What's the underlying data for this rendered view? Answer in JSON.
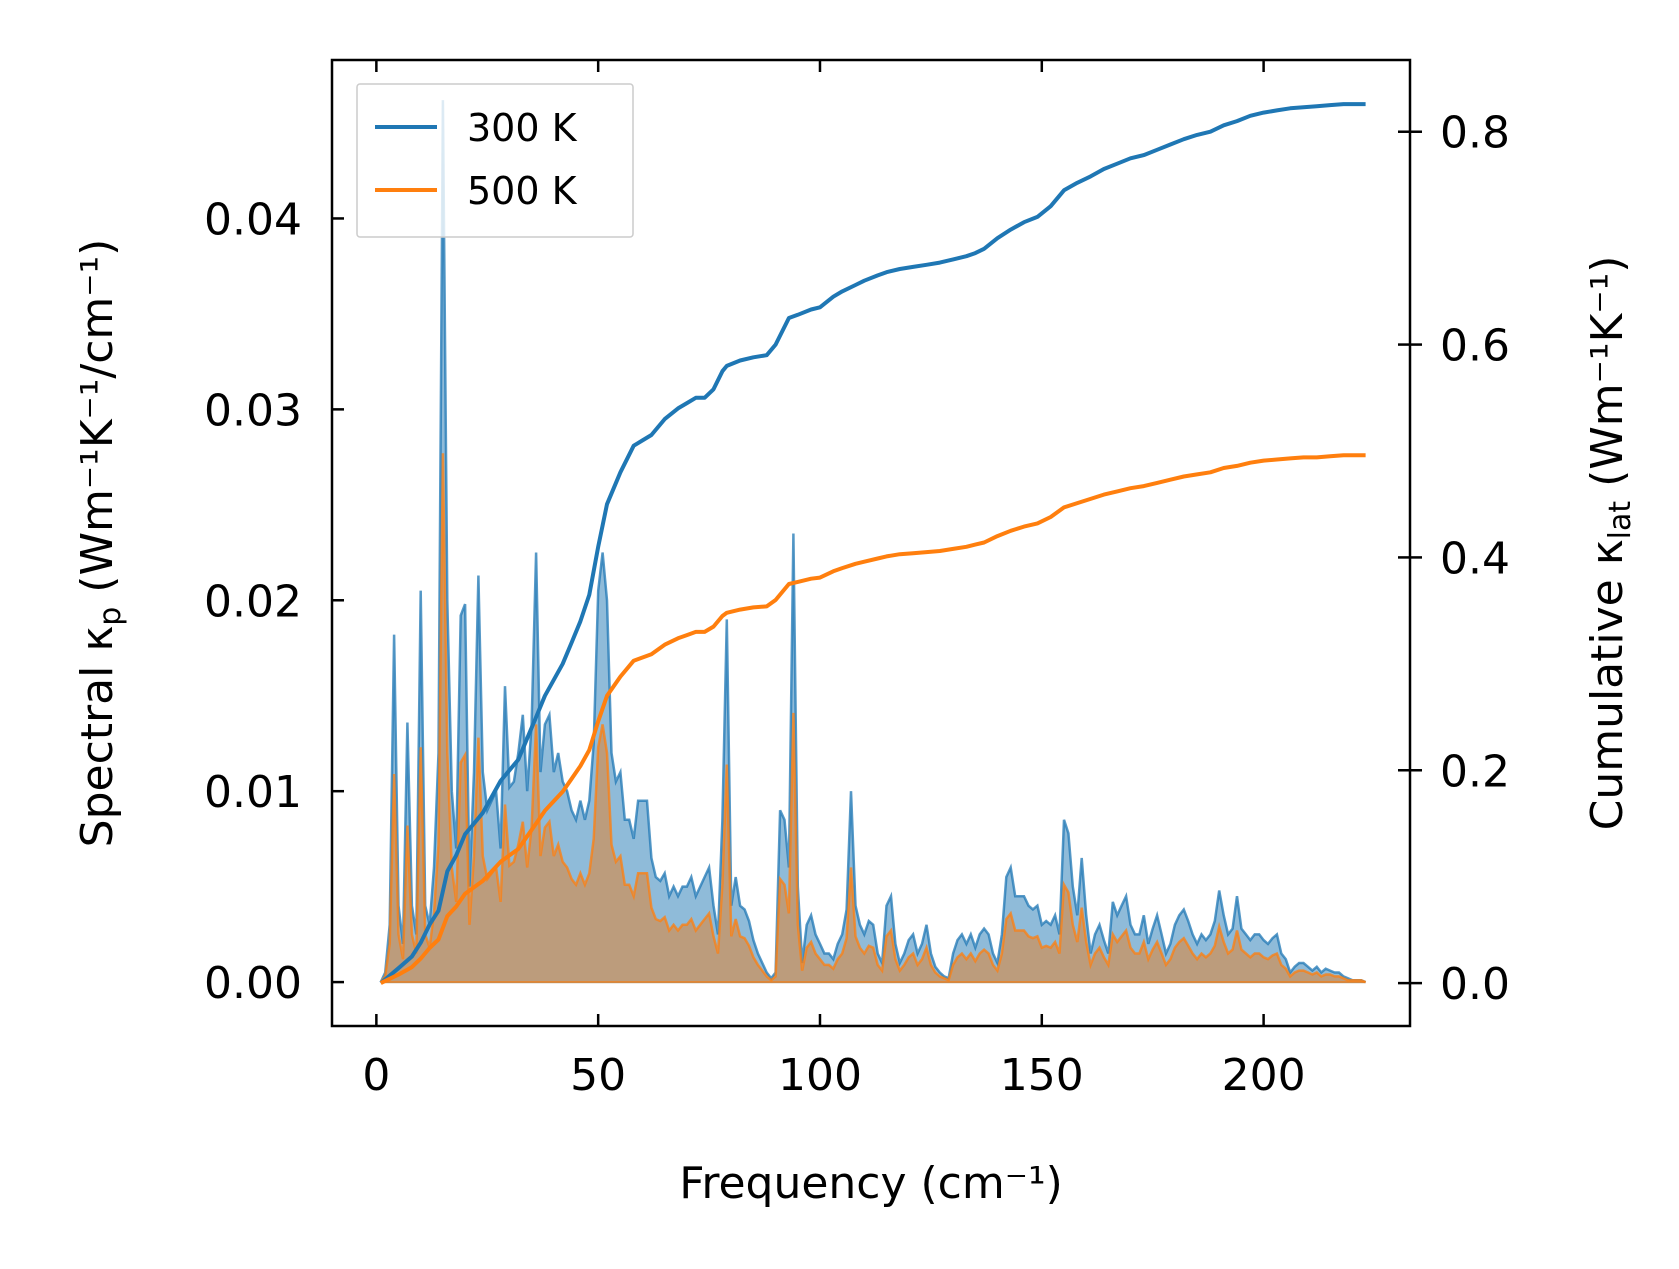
{
  "chart_data": {
    "type": "line",
    "title": "",
    "xlabel": "Frequency (cm⁻¹)",
    "ylabel_left": {
      "prefix": "Spectral κ",
      "sub": "p",
      "unit": " (Wm⁻¹K⁻¹/cm⁻¹)"
    },
    "ylabel_right": {
      "prefix": "Cumulative κ",
      "sub": "lat",
      "unit": " (Wm⁻¹K⁻¹)"
    },
    "xlim": [
      -10,
      233
    ],
    "ylim_left": [
      -0.0023,
      0.0483
    ],
    "ylim_right": [
      -0.0403,
      0.8674
    ],
    "xticks": [
      0,
      50,
      100,
      150,
      200
    ],
    "xtick_labels": [
      "0",
      "50",
      "100",
      "150",
      "200"
    ],
    "yticks_left": [
      0.0,
      0.01,
      0.02,
      0.03,
      0.04
    ],
    "ytick_labels_left": [
      "0.00",
      "0.01",
      "0.02",
      "0.03",
      "0.04"
    ],
    "yticks_right": [
      0.0,
      0.2,
      0.4,
      0.6,
      0.8
    ],
    "ytick_labels_right": [
      "0.0",
      "0.2",
      "0.4",
      "0.6",
      "0.8"
    ],
    "legend": {
      "placement": "top-left",
      "entries": [
        "300 K",
        "500 K"
      ]
    },
    "colors": {
      "s300": "#1f77b4",
      "s500": "#ff7f0e",
      "fill_overlap": "#c4966b"
    },
    "spectral_x": [
      1,
      2,
      3,
      4,
      5,
      6,
      7,
      8,
      9,
      10,
      11,
      12,
      13,
      14,
      15,
      16,
      17,
      18,
      19,
      20,
      21,
      22,
      23,
      24,
      25,
      26,
      27,
      28,
      29,
      30,
      31,
      32,
      33,
      34,
      35,
      36,
      37,
      38,
      39,
      40,
      41,
      42,
      43,
      44,
      45,
      46,
      47,
      48,
      49,
      50,
      51,
      52,
      53,
      54,
      55,
      56,
      57,
      58,
      59,
      60,
      61,
      62,
      63,
      64,
      65,
      66,
      67,
      68,
      69,
      70,
      71,
      72,
      73,
      74,
      75,
      76,
      77,
      78,
      79,
      80,
      81,
      82,
      83,
      84,
      85,
      86,
      87,
      88,
      89,
      90,
      91,
      92,
      93,
      94,
      95,
      96,
      97,
      98,
      99,
      100,
      101,
      102,
      103,
      104,
      105,
      106,
      107,
      108,
      109,
      110,
      111,
      112,
      113,
      114,
      115,
      116,
      117,
      118,
      119,
      120,
      121,
      122,
      123,
      124,
      125,
      126,
      127,
      128,
      129,
      130,
      131,
      132,
      133,
      134,
      135,
      136,
      137,
      138,
      139,
      140,
      141,
      142,
      143,
      144,
      145,
      146,
      147,
      148,
      149,
      150,
      151,
      152,
      153,
      154,
      155,
      156,
      157,
      158,
      159,
      160,
      161,
      162,
      163,
      164,
      165,
      166,
      167,
      168,
      169,
      170,
      171,
      172,
      173,
      174,
      175,
      176,
      177,
      178,
      179,
      180,
      181,
      182,
      183,
      184,
      185,
      186,
      187,
      188,
      189,
      190,
      191,
      192,
      193,
      194,
      195,
      196,
      197,
      198,
      199,
      200,
      201,
      202,
      203,
      204,
      205,
      206,
      207,
      208,
      209,
      210,
      211,
      212,
      213,
      214,
      215,
      216,
      217,
      218,
      219,
      220,
      221,
      222,
      223
    ],
    "series": [
      {
        "name": "300 K",
        "spectral": [
          0,
          0.0005,
          0.003,
          0.0182,
          0.004,
          0.002,
          0.0136,
          0.004,
          0.0025,
          0.0205,
          0.004,
          0.003,
          0.006,
          0.012,
          0.0462,
          0.02,
          0.01,
          0.007,
          0.0192,
          0.0198,
          0.005,
          0.011,
          0.0213,
          0.011,
          0.009,
          0.0095,
          0.01,
          0.007,
          0.0155,
          0.0102,
          0.0105,
          0.012,
          0.014,
          0.01,
          0.0135,
          0.0225,
          0.011,
          0.0135,
          0.014,
          0.011,
          0.012,
          0.0105,
          0.01,
          0.009,
          0.0085,
          0.0095,
          0.0085,
          0.0095,
          0.0125,
          0.0205,
          0.0225,
          0.02,
          0.012,
          0.0105,
          0.011,
          0.0085,
          0.0085,
          0.0075,
          0.0095,
          0.0095,
          0.0095,
          0.0065,
          0.0055,
          0.0053,
          0.0057,
          0.0045,
          0.005,
          0.0045,
          0.005,
          0.005,
          0.0055,
          0.0045,
          0.005,
          0.0055,
          0.006,
          0.004,
          0.0025,
          0.0085,
          0.019,
          0.004,
          0.0055,
          0.004,
          0.0038,
          0.0032,
          0.0022,
          0.0015,
          0.001,
          0.0005,
          0.0002,
          0.0005,
          0.009,
          0.0085,
          0.006,
          0.0235,
          0.005,
          0.001,
          0.003,
          0.0035,
          0.0025,
          0.002,
          0.0015,
          0.0015,
          0.0012,
          0.002,
          0.0025,
          0.0038,
          0.01,
          0.004,
          0.003,
          0.0025,
          0.0032,
          0.003,
          0.0015,
          0.001,
          0.004,
          0.0045,
          0.002,
          0.001,
          0.0015,
          0.0022,
          0.0025,
          0.0015,
          0.002,
          0.003,
          0.0015,
          0.0008,
          0.0005,
          0.0003,
          0.0002,
          0.0015,
          0.0022,
          0.0025,
          0.002,
          0.0025,
          0.0018,
          0.0025,
          0.0028,
          0.0025,
          0.0015,
          0.001,
          0.0025,
          0.0055,
          0.006,
          0.0045,
          0.0045,
          0.0045,
          0.004,
          0.0038,
          0.004,
          0.003,
          0.0032,
          0.003,
          0.0035,
          0.0025,
          0.0085,
          0.0078,
          0.005,
          0.0035,
          0.0065,
          0.0035,
          0.0015,
          0.0025,
          0.003,
          0.0022,
          0.0015,
          0.0042,
          0.0035,
          0.004,
          0.0045,
          0.003,
          0.0025,
          0.0025,
          0.0035,
          0.002,
          0.0028,
          0.0035,
          0.0025,
          0.0015,
          0.002,
          0.003,
          0.0035,
          0.0038,
          0.0032,
          0.0025,
          0.002,
          0.0025,
          0.0022,
          0.0025,
          0.0032,
          0.0048,
          0.0035,
          0.0025,
          0.0028,
          0.0045,
          0.0028,
          0.0025,
          0.0022,
          0.0025,
          0.0025,
          0.0022,
          0.002,
          0.0023,
          0.0025,
          0.0015,
          0.0012,
          0.0005,
          0.0008,
          0.001,
          0.001,
          0.0008,
          0.0006,
          0.0008,
          0.0005,
          0.0007,
          0.0006,
          0.0005,
          0.0005,
          0.0003,
          0.0002,
          0.0001,
          0.0001,
          0.0001,
          0,
          0,
          0
        ],
        "cumulative_x": [
          1,
          5,
          8,
          10,
          12,
          14,
          16,
          18,
          20,
          22,
          24,
          26,
          28,
          30,
          32,
          34,
          36,
          38,
          40,
          42,
          44,
          46,
          48,
          50,
          52,
          55,
          58,
          60,
          62,
          65,
          68,
          70,
          72,
          74,
          76,
          78,
          79,
          82,
          85,
          88,
          90,
          93,
          95,
          98,
          100,
          103,
          105,
          108,
          110,
          113,
          115,
          118,
          121,
          124,
          127,
          130,
          133,
          135,
          137,
          140,
          143,
          146,
          149,
          152,
          155,
          158,
          161,
          164,
          167,
          170,
          173,
          176,
          179,
          182,
          185,
          188,
          191,
          194,
          197,
          200,
          203,
          206,
          209,
          212,
          215,
          218,
          220,
          223
        ],
        "cumulative_y": [
          0,
          0.014,
          0.025,
          0.038,
          0.055,
          0.068,
          0.105,
          0.12,
          0.14,
          0.15,
          0.16,
          0.175,
          0.19,
          0.2,
          0.21,
          0.23,
          0.25,
          0.27,
          0.285,
          0.3,
          0.32,
          0.34,
          0.365,
          0.41,
          0.45,
          0.48,
          0.505,
          0.51,
          0.515,
          0.53,
          0.54,
          0.545,
          0.55,
          0.55,
          0.558,
          0.575,
          0.58,
          0.585,
          0.588,
          0.59,
          0.6,
          0.625,
          0.628,
          0.633,
          0.635,
          0.645,
          0.65,
          0.656,
          0.66,
          0.665,
          0.668,
          0.671,
          0.673,
          0.675,
          0.677,
          0.68,
          0.683,
          0.686,
          0.69,
          0.7,
          0.708,
          0.715,
          0.72,
          0.73,
          0.745,
          0.752,
          0.758,
          0.765,
          0.77,
          0.775,
          0.778,
          0.783,
          0.788,
          0.793,
          0.797,
          0.8,
          0.806,
          0.81,
          0.815,
          0.818,
          0.82,
          0.822,
          0.823,
          0.824,
          0.825,
          0.826,
          0.826,
          0.826
        ]
      },
      {
        "name": "500 K",
        "spectral": [
          0,
          0.0003,
          0.002,
          0.0109,
          0.0025,
          0.0012,
          0.0082,
          0.0025,
          0.0015,
          0.0123,
          0.0025,
          0.0018,
          0.0036,
          0.0072,
          0.0277,
          0.012,
          0.006,
          0.0042,
          0.0115,
          0.0119,
          0.003,
          0.0066,
          0.0128,
          0.0066,
          0.0054,
          0.0057,
          0.006,
          0.0042,
          0.0093,
          0.0061,
          0.0063,
          0.0072,
          0.0084,
          0.006,
          0.0081,
          0.0135,
          0.0066,
          0.0081,
          0.0084,
          0.0066,
          0.0072,
          0.0063,
          0.006,
          0.0054,
          0.0051,
          0.0057,
          0.0051,
          0.0057,
          0.0075,
          0.0123,
          0.0135,
          0.012,
          0.0072,
          0.0063,
          0.0066,
          0.0051,
          0.0051,
          0.0045,
          0.0057,
          0.0057,
          0.0057,
          0.0039,
          0.0033,
          0.0032,
          0.0034,
          0.0027,
          0.003,
          0.0027,
          0.003,
          0.003,
          0.0033,
          0.0027,
          0.003,
          0.0033,
          0.0036,
          0.0024,
          0.0015,
          0.0051,
          0.0114,
          0.0024,
          0.0033,
          0.0024,
          0.0023,
          0.0019,
          0.0013,
          0.0009,
          0.0006,
          0.0003,
          0.0001,
          0.0003,
          0.0054,
          0.0051,
          0.0036,
          0.0141,
          0.003,
          0.0006,
          0.0018,
          0.0021,
          0.0015,
          0.0012,
          0.0009,
          0.0009,
          0.0007,
          0.0012,
          0.0015,
          0.0023,
          0.006,
          0.0024,
          0.0018,
          0.0015,
          0.0019,
          0.0018,
          0.0009,
          0.0006,
          0.0024,
          0.0027,
          0.0012,
          0.0006,
          0.0009,
          0.0013,
          0.0015,
          0.0009,
          0.0012,
          0.0018,
          0.0009,
          0.0005,
          0.0003,
          0.0002,
          0.0001,
          0.0009,
          0.0013,
          0.0015,
          0.0012,
          0.0015,
          0.0011,
          0.0015,
          0.0017,
          0.0015,
          0.0009,
          0.0006,
          0.0015,
          0.0033,
          0.0036,
          0.0027,
          0.0027,
          0.0027,
          0.0024,
          0.0023,
          0.0024,
          0.0018,
          0.0019,
          0.0018,
          0.0021,
          0.0015,
          0.0051,
          0.0047,
          0.003,
          0.0021,
          0.0039,
          0.0021,
          0.0009,
          0.0015,
          0.0018,
          0.0013,
          0.0009,
          0.0025,
          0.0021,
          0.0024,
          0.0027,
          0.0018,
          0.0015,
          0.0015,
          0.0021,
          0.0012,
          0.0017,
          0.0021,
          0.0015,
          0.0009,
          0.0012,
          0.0018,
          0.0021,
          0.0023,
          0.0019,
          0.0015,
          0.0012,
          0.0015,
          0.0013,
          0.0015,
          0.0019,
          0.0029,
          0.0021,
          0.0015,
          0.0017,
          0.0027,
          0.0017,
          0.0015,
          0.0013,
          0.0015,
          0.0015,
          0.0013,
          0.0012,
          0.0014,
          0.0015,
          0.0009,
          0.0007,
          0.0003,
          0.0005,
          0.0006,
          0.0006,
          0.0005,
          0.0004,
          0.0005,
          0.0003,
          0.0004,
          0.0004,
          0.0003,
          0.0003,
          0.0002,
          0.0001,
          0.0001,
          0.0001,
          0.0001,
          0,
          0,
          0
        ],
        "cumulative_x": [
          1,
          5,
          8,
          10,
          12,
          14,
          16,
          18,
          20,
          22,
          24,
          26,
          28,
          30,
          32,
          34,
          36,
          38,
          40,
          42,
          44,
          46,
          48,
          50,
          52,
          55,
          58,
          60,
          62,
          65,
          68,
          70,
          72,
          74,
          76,
          78,
          79,
          82,
          85,
          88,
          90,
          93,
          95,
          98,
          100,
          103,
          105,
          108,
          110,
          113,
          115,
          118,
          121,
          124,
          127,
          130,
          133,
          135,
          137,
          140,
          143,
          146,
          149,
          152,
          155,
          158,
          161,
          164,
          167,
          170,
          173,
          176,
          179,
          182,
          185,
          188,
          191,
          194,
          197,
          200,
          203,
          206,
          209,
          212,
          215,
          218,
          220,
          223
        ],
        "cumulative_y": [
          0,
          0.008,
          0.015,
          0.023,
          0.033,
          0.041,
          0.063,
          0.072,
          0.084,
          0.09,
          0.096,
          0.105,
          0.114,
          0.12,
          0.126,
          0.138,
          0.15,
          0.162,
          0.171,
          0.18,
          0.192,
          0.204,
          0.219,
          0.246,
          0.27,
          0.288,
          0.303,
          0.306,
          0.309,
          0.318,
          0.324,
          0.327,
          0.33,
          0.33,
          0.335,
          0.345,
          0.348,
          0.351,
          0.353,
          0.354,
          0.36,
          0.375,
          0.377,
          0.38,
          0.381,
          0.387,
          0.39,
          0.394,
          0.396,
          0.399,
          0.401,
          0.403,
          0.404,
          0.405,
          0.406,
          0.408,
          0.41,
          0.412,
          0.414,
          0.42,
          0.425,
          0.429,
          0.432,
          0.438,
          0.447,
          0.451,
          0.455,
          0.459,
          0.462,
          0.465,
          0.467,
          0.47,
          0.473,
          0.476,
          0.478,
          0.48,
          0.484,
          0.486,
          0.489,
          0.491,
          0.492,
          0.493,
          0.494,
          0.494,
          0.495,
          0.496,
          0.496,
          0.496
        ]
      }
    ]
  }
}
